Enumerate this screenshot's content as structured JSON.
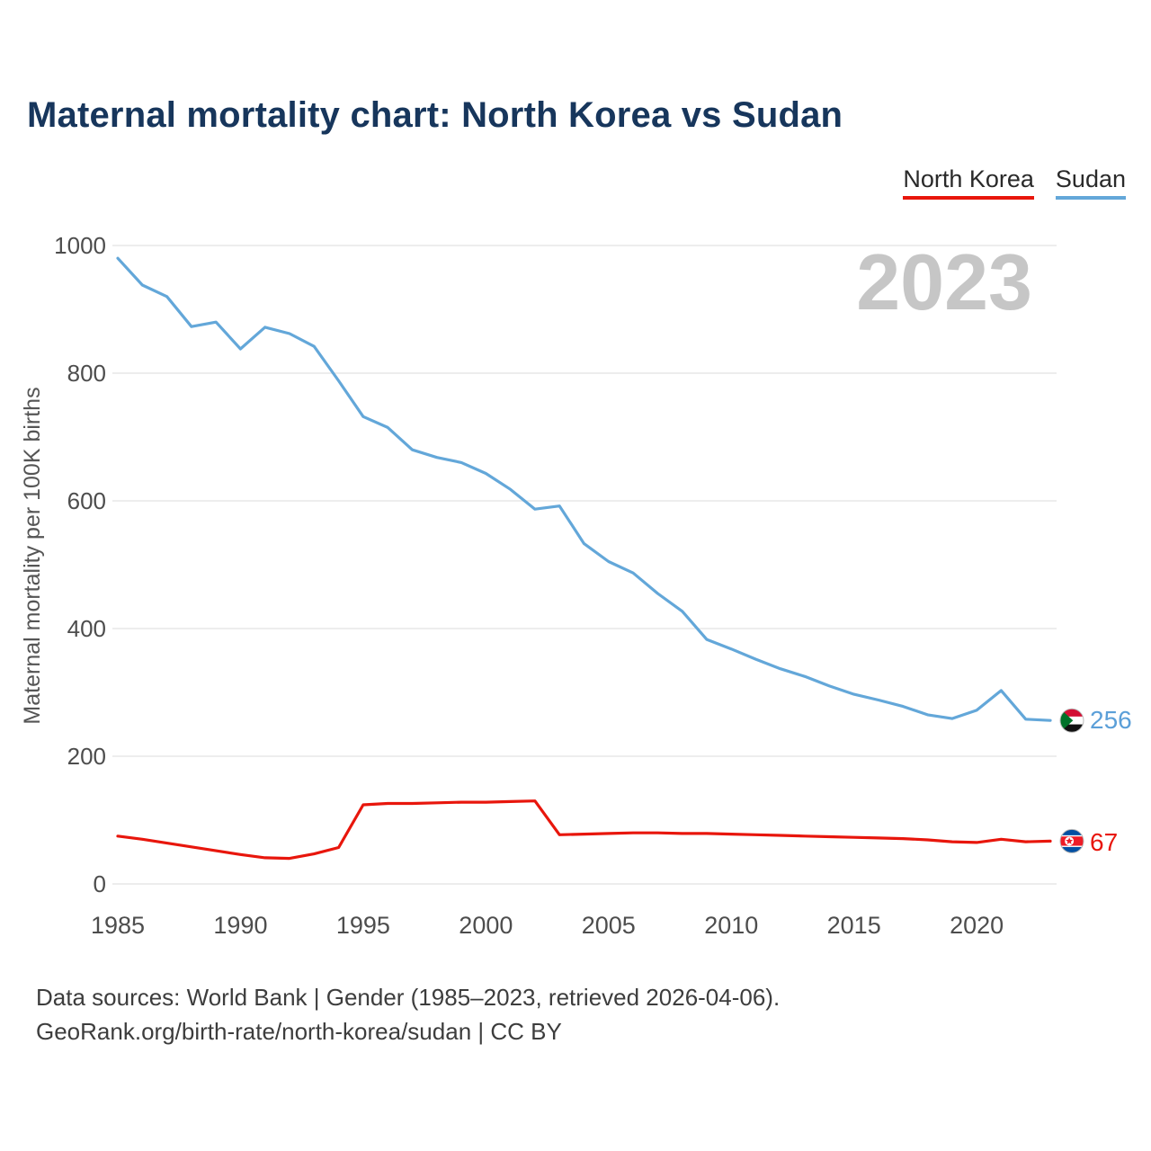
{
  "header": {
    "title": "Maternal mortality chart: North Korea vs Sudan"
  },
  "legend": [
    {
      "label": "North Korea",
      "color": "#e8160c"
    },
    {
      "label": "Sudan",
      "color": "#63a7d9"
    }
  ],
  "watermark": "2023",
  "chart_data": {
    "type": "line",
    "title": "Maternal mortality chart: North Korea vs Sudan",
    "xlabel": "",
    "ylabel": "Maternal mortality per 100K births",
    "ylim": [
      0,
      1000
    ],
    "yticks": [
      0,
      200,
      400,
      600,
      800,
      1000
    ],
    "xticks": [
      1985,
      1990,
      1995,
      2000,
      2005,
      2010,
      2015,
      2020
    ],
    "grid": "horizontal",
    "legend_position": "top-right",
    "x": [
      1985,
      1986,
      1987,
      1988,
      1989,
      1990,
      1991,
      1992,
      1993,
      1994,
      1995,
      1996,
      1997,
      1998,
      1999,
      2000,
      2001,
      2002,
      2003,
      2004,
      2005,
      2006,
      2007,
      2008,
      2009,
      2010,
      2011,
      2012,
      2013,
      2014,
      2015,
      2016,
      2017,
      2018,
      2019,
      2020,
      2021,
      2022,
      2023
    ],
    "series": [
      {
        "name": "North Korea",
        "color": "#e8160c",
        "end_label": "67",
        "flag": "north-korea",
        "values": [
          75,
          70,
          64,
          58,
          52,
          46,
          41,
          40,
          47,
          57,
          124,
          126,
          126,
          127,
          128,
          128,
          129,
          130,
          77,
          78,
          79,
          80,
          80,
          79,
          79,
          78,
          77,
          76,
          75,
          74,
          73,
          72,
          71,
          69,
          66,
          65,
          70,
          66,
          67
        ]
      },
      {
        "name": "Sudan",
        "color": "#63a7d9",
        "end_label": "256",
        "flag": "sudan",
        "values": [
          980,
          938,
          920,
          873,
          880,
          838,
          872,
          862,
          842,
          788,
          732,
          715,
          680,
          668,
          660,
          643,
          618,
          587,
          592,
          533,
          505,
          487,
          455,
          427,
          383,
          368,
          352,
          337,
          325,
          310,
          297,
          288,
          278,
          265,
          259,
          272,
          303,
          258,
          256
        ]
      }
    ]
  },
  "footer": {
    "line1": "Data sources: World Bank | Gender (1985–2023, retrieved 2026-04-06).",
    "line2": "GeoRank.org/birth-rate/north-korea/sudan | CC BY"
  }
}
